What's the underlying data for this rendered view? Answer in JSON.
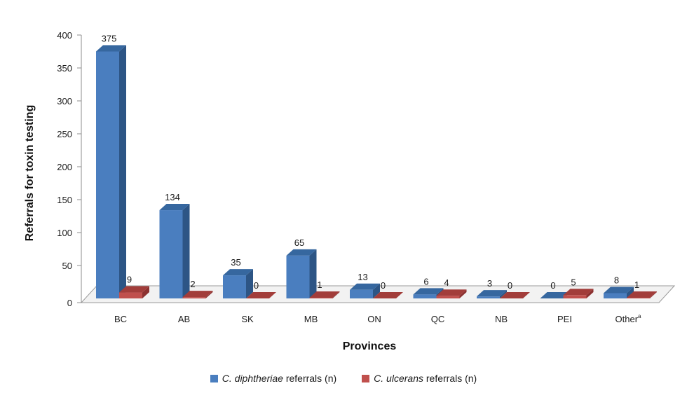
{
  "colors": {
    "series1": "#4a7ebf",
    "series1_dark": "#2d5585",
    "series1_top": "#36679f",
    "series2": "#c0504d",
    "series2_dark": "#8c3130",
    "series2_top": "#a23d3a"
  },
  "chart_data": {
    "type": "bar",
    "title": "",
    "xlabel": "Provinces",
    "ylabel": "Referrals for toxin testing",
    "ylim": [
      0,
      400
    ],
    "yticks": [
      0,
      50,
      100,
      150,
      200,
      250,
      300,
      350,
      400
    ],
    "categories": [
      "BC",
      "AB",
      "SK",
      "MB",
      "ON",
      "QC",
      "NB",
      "PEI",
      "Other"
    ],
    "category_superscripts": [
      "",
      "",
      "",
      "",
      "",
      "",
      "",
      "",
      "a"
    ],
    "series": [
      {
        "name_italic": "C. diphtheriae",
        "name_suffix": " referrals (n)",
        "values": [
          375,
          134,
          35,
          65,
          13,
          6,
          3,
          0,
          8
        ]
      },
      {
        "name_italic": "C. ulcerans",
        "name_suffix": " referrals (n)",
        "values": [
          9,
          2,
          0,
          1,
          0,
          4,
          0,
          5,
          1
        ]
      }
    ],
    "grid": false,
    "legend_position": "bottom",
    "style": "3d-clustered-column"
  }
}
